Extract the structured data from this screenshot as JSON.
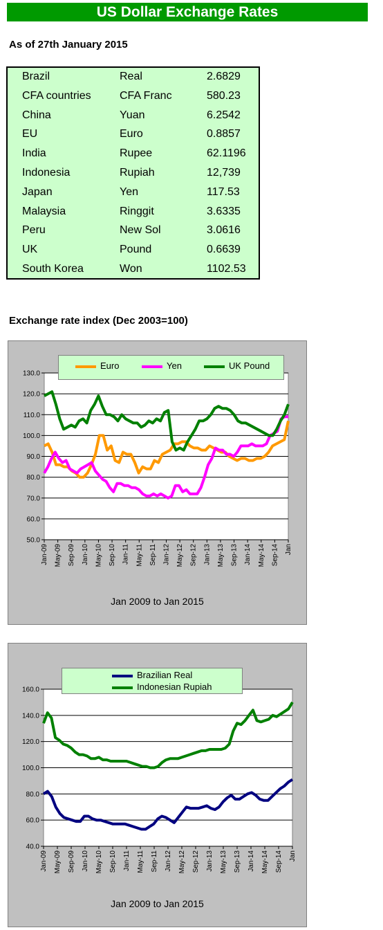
{
  "header": {
    "title": "US Dollar Exchange Rates",
    "as_of": "As of 27th January 2015"
  },
  "rates": [
    {
      "country": "Brazil",
      "currency": "Real",
      "rate": "2.6829"
    },
    {
      "country": "CFA countries",
      "currency": "CFA Franc",
      "rate": "580.23"
    },
    {
      "country": "China",
      "currency": "Yuan",
      "rate": "6.2542"
    },
    {
      "country": "EU",
      "currency": "Euro",
      "rate": "0.8857"
    },
    {
      "country": "India",
      "currency": "Rupee",
      "rate": "62.1196"
    },
    {
      "country": "Indonesia",
      "currency": "Rupiah",
      "rate": "12,739"
    },
    {
      "country": "Japan",
      "currency": "Yen",
      "rate": "117.53"
    },
    {
      "country": "Malaysia",
      "currency": "Ringgit",
      "rate": "3.6335"
    },
    {
      "country": "Peru",
      "currency": "New Sol",
      "rate": "3.0616"
    },
    {
      "country": "UK",
      "currency": "Pound",
      "rate": "0.6639"
    },
    {
      "country": "South Korea",
      "currency": "Won",
      "rate": "1102.53"
    }
  ],
  "index_title": "Exchange rate index (Dec 2003=100)",
  "chart_data": [
    {
      "type": "line",
      "xlabel": "Jan 2009 to Jan 2015",
      "ylim": [
        50,
        130
      ],
      "yticks": [
        "50.0",
        "60.0",
        "70.0",
        "80.0",
        "90.0",
        "100.0",
        "110.0",
        "120.0",
        "130.0"
      ],
      "xticks": [
        "Jan-09",
        "May-09",
        "Sep-09",
        "Jan-10",
        "May-10",
        "Sep-10",
        "Jan-11",
        "May-11",
        "Sep-11",
        "Jan-12",
        "May-12",
        "Sep-12",
        "Jan-13",
        "May-13",
        "Sep-13",
        "Jan-14",
        "May-14",
        "Sep-14",
        "Jan"
      ],
      "grid": true,
      "legend": "top",
      "series": [
        {
          "name": "Euro",
          "color": "#ff9900",
          "values": [
            95,
            96,
            92,
            86,
            86,
            85,
            85,
            83,
            82,
            80,
            80,
            82,
            86,
            91,
            100,
            100,
            93,
            95,
            88,
            87,
            92,
            91,
            91,
            87,
            82,
            85,
            84,
            84,
            88,
            87,
            91,
            92,
            93,
            96,
            96,
            97,
            97,
            95,
            94,
            94,
            93,
            93,
            95,
            94,
            93,
            92,
            92,
            90,
            89,
            88,
            89,
            89,
            88,
            88,
            89,
            89,
            90,
            92,
            95,
            96,
            97,
            98,
            107
          ]
        },
        {
          "name": "Yen",
          "color": "#ff00ff",
          "values": [
            82,
            85,
            89,
            92,
            89,
            87,
            88,
            84,
            83,
            82,
            84,
            85,
            86,
            87,
            83,
            81,
            79,
            78,
            75,
            73,
            77,
            77,
            76,
            76,
            75,
            75,
            74,
            72,
            71,
            71,
            72,
            71,
            72,
            71,
            70,
            71,
            76,
            76,
            73,
            74,
            72,
            72,
            72,
            75,
            80,
            86,
            89,
            94,
            93,
            93,
            91,
            91,
            90,
            92,
            95,
            95,
            95,
            96,
            95,
            95,
            95,
            96,
            100,
            101,
            102,
            108,
            109,
            109
          ]
        },
        {
          "name": "UK Pound",
          "color": "#008000",
          "values": [
            119,
            120,
            121,
            115,
            108,
            103,
            104,
            105,
            104,
            107,
            108,
            106,
            112,
            115,
            119,
            114,
            110,
            110,
            109,
            107,
            110,
            108,
            107,
            106,
            106,
            104,
            105,
            107,
            106,
            108,
            107,
            111,
            112,
            97,
            93,
            94,
            93,
            97,
            100,
            103,
            107,
            107,
            108,
            110,
            113,
            114,
            113,
            113,
            112,
            110,
            107,
            106,
            106,
            105,
            104,
            103,
            102,
            101,
            100,
            100,
            103,
            107,
            110,
            115
          ]
        }
      ]
    },
    {
      "type": "line",
      "xlabel": "Jan 2009 to Jan 2015",
      "ylim": [
        40,
        160
      ],
      "yticks": [
        "40.0",
        "60.0",
        "80.0",
        "100.0",
        "120.0",
        "140.0",
        "160.0"
      ],
      "xticks": [
        "Jan-09",
        "May-09",
        "Sep-09",
        "Jan-10",
        "May-10",
        "Sep-10",
        "Jan-11",
        "May-11",
        "Sep-11",
        "Jan-12",
        "May-12",
        "Sep-12",
        "Jan-13",
        "May-13",
        "Sep-13",
        "Jan-14",
        "May-14",
        "Sep-14",
        "Jan"
      ],
      "grid": true,
      "legend": "top",
      "series": [
        {
          "name": "Brazilian Real",
          "color": "#000080",
          "values": [
            80,
            82,
            78,
            70,
            65,
            62,
            61,
            60,
            59,
            59,
            63,
            63,
            61,
            60,
            60,
            59,
            58,
            57,
            57,
            57,
            57,
            56,
            55,
            54,
            53,
            53,
            55,
            57,
            61,
            63,
            62,
            60,
            58,
            62,
            66,
            70,
            69,
            69,
            69,
            70,
            71,
            69,
            68,
            70,
            74,
            77,
            79,
            76,
            76,
            78,
            80,
            81,
            79,
            76,
            75,
            75,
            78,
            81,
            84,
            86,
            89,
            91
          ]
        },
        {
          "name": "Indonesian Rupiah",
          "color": "#008000",
          "values": [
            134,
            142,
            138,
            123,
            121,
            118,
            117,
            115,
            112,
            110,
            110,
            109,
            107,
            107,
            108,
            106,
            106,
            105,
            105,
            105,
            105,
            105,
            104,
            103,
            102,
            101,
            101,
            100,
            100,
            101,
            104,
            106,
            107,
            107,
            107,
            108,
            109,
            110,
            111,
            112,
            113,
            113,
            114,
            114,
            114,
            114,
            115,
            118,
            128,
            134,
            133,
            136,
            140,
            144,
            136,
            135,
            136,
            137,
            140,
            139,
            141,
            143,
            145,
            150
          ]
        }
      ]
    }
  ]
}
